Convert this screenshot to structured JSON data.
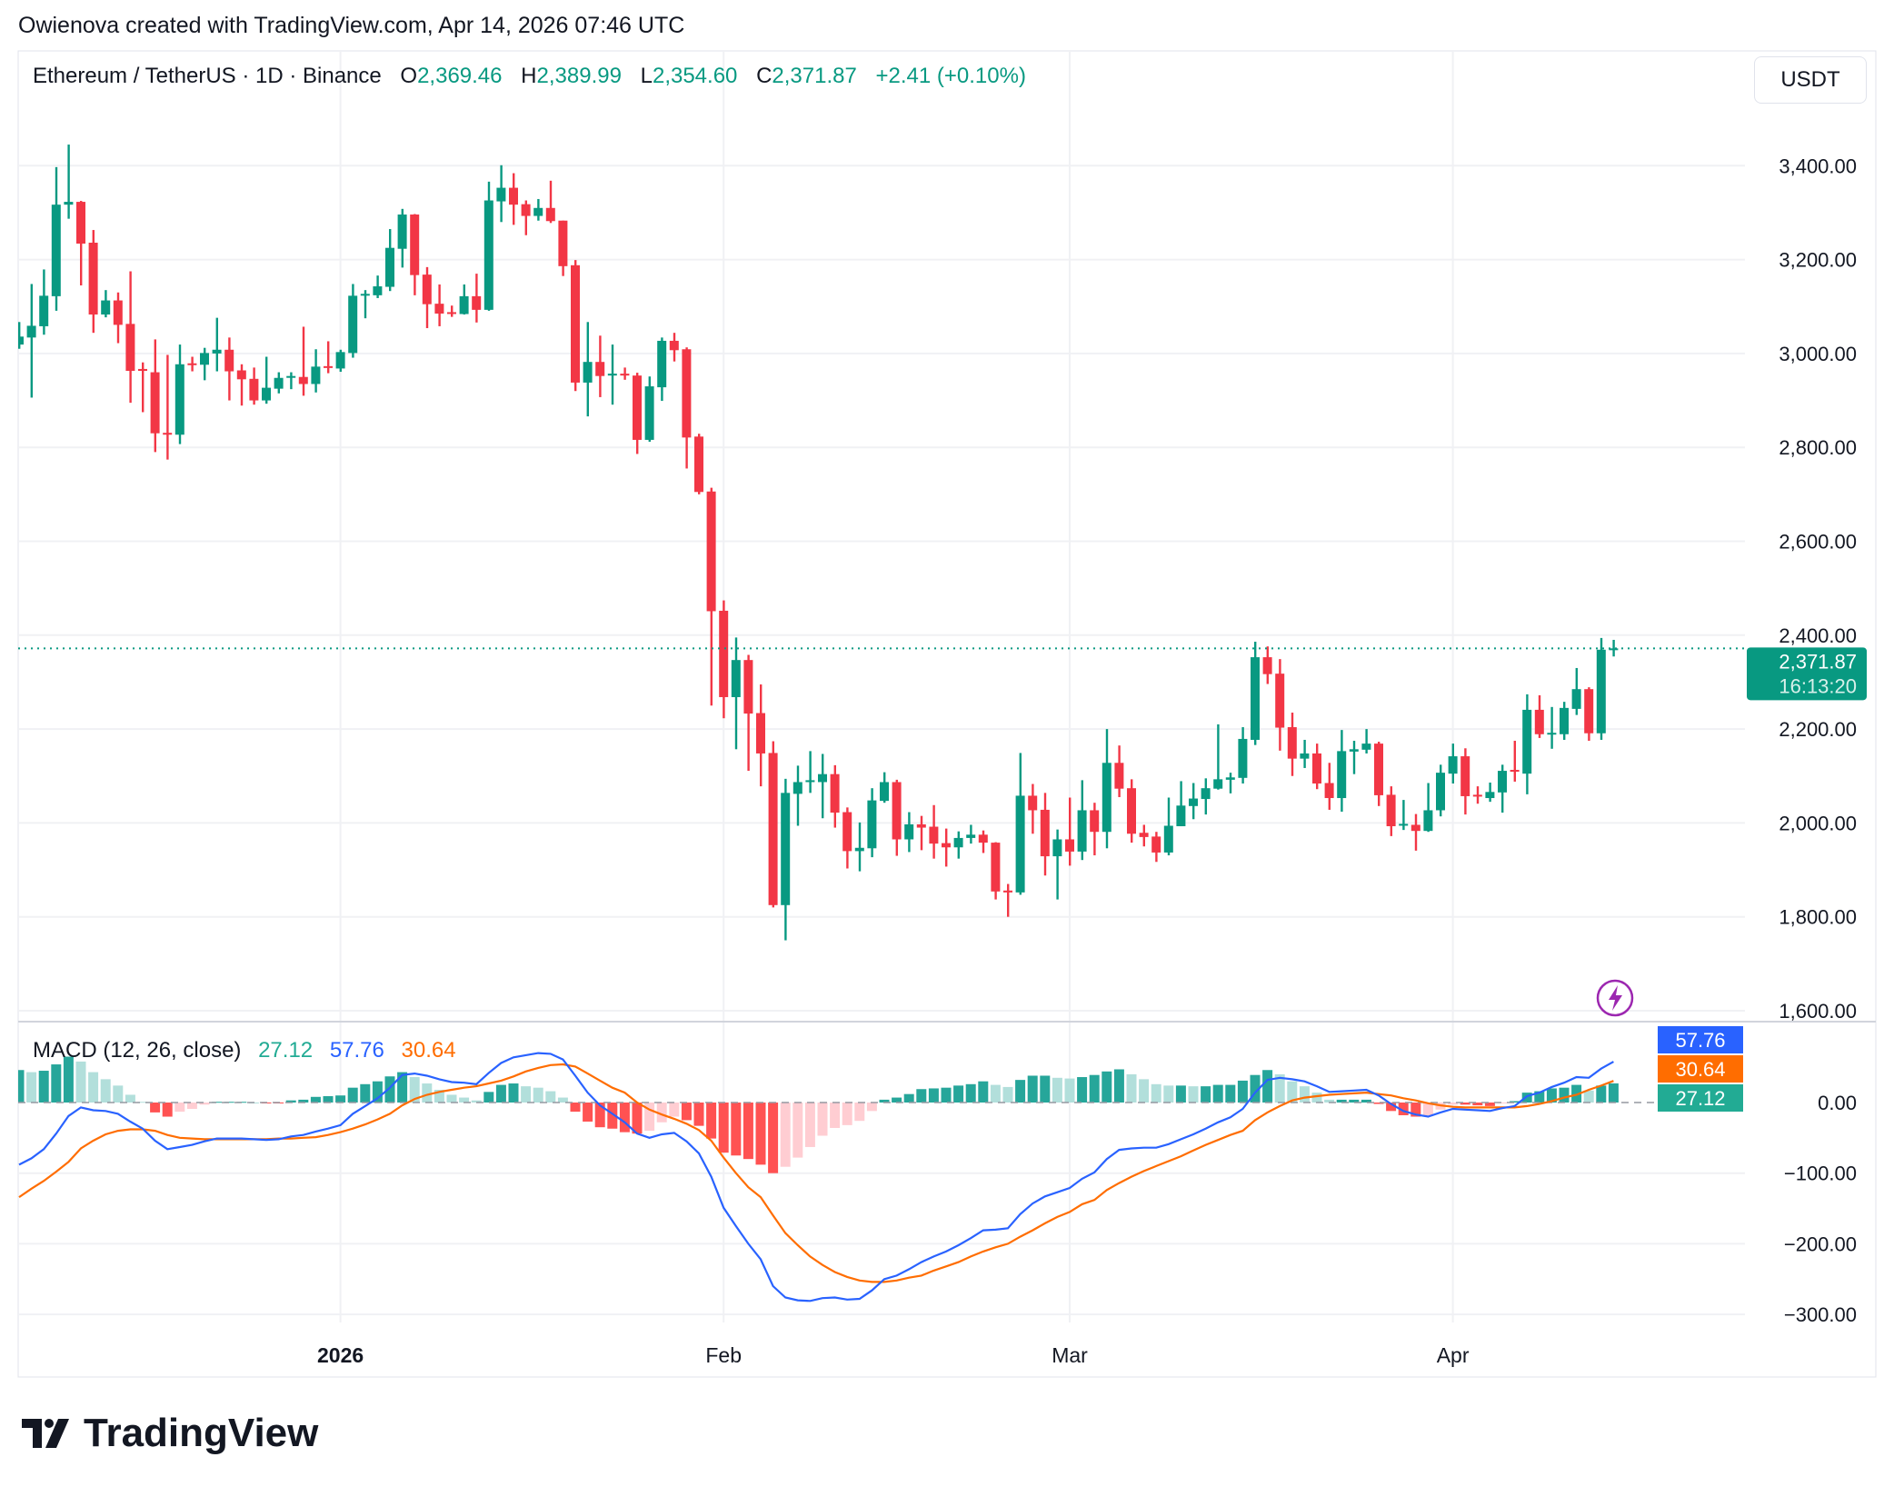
{
  "credit": "Owienova created with TradingView.com, Apr 14, 2026 07:46 UTC",
  "legend": {
    "symbol": "Ethereum / TetherUS · 1D · Binance",
    "o_label": "O",
    "open": "2,369.46",
    "h_label": "H",
    "high": "2,389.99",
    "l_label": "L",
    "low": "2,354.60",
    "c_label": "C",
    "close": "2,371.87",
    "change": "+2.41 (+0.10%)"
  },
  "currency_button": "USDT",
  "logo_text": "TradingView",
  "colors": {
    "up": "#089981",
    "down": "#f23645",
    "macd": "#2962ff",
    "signal": "#ff6d00",
    "hist_up_strong": "#26a69a",
    "hist_up_weak": "#b2dfdb",
    "hist_down_strong": "#ff5252",
    "hist_down_weak": "#ffcdd2",
    "alert": "#9c27b0"
  },
  "chart_data": {
    "type": "candlestick",
    "title": "Ethereum / TetherUS · 1D · Binance",
    "ylim": [
      1600,
      3450
    ],
    "grid": true,
    "y_ticks": [
      {
        "value": 3400,
        "label": "3,400.00"
      },
      {
        "value": 3200,
        "label": "3,200.00"
      },
      {
        "value": 3000,
        "label": "3,000.00"
      },
      {
        "value": 2800,
        "label": "2,800.00"
      },
      {
        "value": 2600,
        "label": "2,600.00"
      },
      {
        "value": 2400,
        "label": "2,400.00"
      },
      {
        "value": 2200,
        "label": "2,200.00"
      },
      {
        "value": 2000,
        "label": "2,000.00"
      },
      {
        "value": 1800,
        "label": "1,800.00"
      },
      {
        "value": 1600,
        "label": "1,600.00"
      }
    ],
    "x_ticks": [
      {
        "date": "2026-01-01",
        "label": "2026",
        "bold": true
      },
      {
        "date": "2026-02-01",
        "label": "Feb"
      },
      {
        "date": "2026-03-01",
        "label": "Mar"
      },
      {
        "date": "2026-04-01",
        "label": "Apr"
      }
    ],
    "current_price": {
      "value": 2371.87,
      "label": "2,371.87",
      "countdown": "16:13:20"
    },
    "candles_columns": [
      "date",
      "open",
      "high",
      "low",
      "close"
    ],
    "candles": [
      [
        "2025-12-06",
        3019,
        3067,
        3010,
        3036
      ],
      [
        "2025-12-07",
        3034,
        3148,
        2906,
        3059
      ],
      [
        "2025-12-08",
        3058,
        3179,
        3040,
        3123
      ],
      [
        "2025-12-09",
        3122,
        3397,
        3091,
        3317
      ],
      [
        "2025-12-10",
        3317,
        3445,
        3287,
        3323
      ],
      [
        "2025-12-11",
        3323,
        3325,
        3145,
        3234
      ],
      [
        "2025-12-12",
        3236,
        3263,
        3044,
        3083
      ],
      [
        "2025-12-13",
        3083,
        3135,
        3077,
        3113
      ],
      [
        "2025-12-14",
        3113,
        3130,
        3022,
        3061
      ],
      [
        "2025-12-15",
        3063,
        3175,
        2895,
        2963
      ],
      [
        "2025-12-16",
        2967,
        2981,
        2875,
        2963
      ],
      [
        "2025-12-17",
        2960,
        3030,
        2790,
        2830
      ],
      [
        "2025-12-18",
        2831,
        2997,
        2774,
        2827
      ],
      [
        "2025-12-19",
        2827,
        3019,
        2807,
        2977
      ],
      [
        "2025-12-20",
        2979,
        2993,
        2962,
        2977
      ],
      [
        "2025-12-21",
        2976,
        3012,
        2943,
        3001
      ],
      [
        "2025-12-22",
        3000,
        3076,
        2962,
        3008
      ],
      [
        "2025-12-23",
        3008,
        3034,
        2900,
        2962
      ],
      [
        "2025-12-24",
        2964,
        2977,
        2889,
        2945
      ],
      [
        "2025-12-25",
        2946,
        2970,
        2891,
        2900
      ],
      [
        "2025-12-26",
        2900,
        2993,
        2893,
        2927
      ],
      [
        "2025-12-27",
        2925,
        2960,
        2915,
        2948
      ],
      [
        "2025-12-28",
        2949,
        2960,
        2924,
        2952
      ],
      [
        "2025-12-29",
        2950,
        3057,
        2910,
        2935
      ],
      [
        "2025-12-30",
        2935,
        3009,
        2917,
        2972
      ],
      [
        "2025-12-31",
        2973,
        3026,
        2958,
        2970
      ],
      [
        "2026-01-01",
        2968,
        3008,
        2961,
        3003
      ],
      [
        "2026-01-02",
        3001,
        3148,
        2991,
        3123
      ],
      [
        "2026-01-03",
        3124,
        3135,
        3075,
        3127
      ],
      [
        "2026-01-04",
        3124,
        3166,
        3118,
        3143
      ],
      [
        "2026-01-05",
        3142,
        3265,
        3133,
        3225
      ],
      [
        "2026-01-06",
        3223,
        3308,
        3183,
        3296
      ],
      [
        "2026-01-07",
        3296,
        3297,
        3124,
        3167
      ],
      [
        "2026-01-08",
        3168,
        3184,
        3054,
        3105
      ],
      [
        "2026-01-09",
        3106,
        3147,
        3058,
        3085
      ],
      [
        "2026-01-10",
        3088,
        3102,
        3078,
        3085
      ],
      [
        "2026-01-11",
        3084,
        3147,
        3083,
        3122
      ],
      [
        "2026-01-12",
        3122,
        3170,
        3066,
        3093
      ],
      [
        "2026-01-13",
        3093,
        3366,
        3091,
        3326
      ],
      [
        "2026-01-14",
        3324,
        3401,
        3280,
        3353
      ],
      [
        "2026-01-15",
        3353,
        3384,
        3274,
        3317
      ],
      [
        "2026-01-16",
        3318,
        3326,
        3252,
        3293
      ],
      [
        "2026-01-17",
        3293,
        3329,
        3283,
        3310
      ],
      [
        "2026-01-18",
        3310,
        3368,
        3278,
        3282
      ],
      [
        "2026-01-19",
        3283,
        3283,
        3165,
        3186
      ],
      [
        "2026-01-20",
        3188,
        3199,
        2920,
        2938
      ],
      [
        "2026-01-21",
        2938,
        3067,
        2866,
        2982
      ],
      [
        "2026-01-22",
        2982,
        3038,
        2907,
        2952
      ],
      [
        "2026-01-23",
        2953,
        3019,
        2891,
        2957
      ],
      [
        "2026-01-24",
        2957,
        2970,
        2944,
        2953
      ],
      [
        "2026-01-25",
        2953,
        2959,
        2786,
        2816
      ],
      [
        "2026-01-26",
        2816,
        2951,
        2812,
        2930
      ],
      [
        "2026-01-27",
        2928,
        3034,
        2899,
        3027
      ],
      [
        "2026-01-28",
        3027,
        3044,
        2983,
        3007
      ],
      [
        "2026-01-29",
        3009,
        3013,
        2755,
        2821
      ],
      [
        "2026-01-30",
        2823,
        2829,
        2700,
        2705
      ],
      [
        "2026-01-31",
        2706,
        2714,
        2250,
        2451
      ],
      [
        "2026-02-01",
        2452,
        2474,
        2223,
        2268
      ],
      [
        "2026-02-02",
        2268,
        2395,
        2157,
        2347
      ],
      [
        "2026-02-03",
        2347,
        2358,
        2111,
        2233
      ],
      [
        "2026-02-04",
        2234,
        2295,
        2078,
        2148
      ],
      [
        "2026-02-05",
        2149,
        2174,
        1820,
        1825
      ],
      [
        "2026-02-06",
        1825,
        2094,
        1750,
        2064
      ],
      [
        "2026-02-07",
        2062,
        2122,
        1994,
        2087
      ],
      [
        "2026-02-08",
        2087,
        2153,
        2064,
        2091
      ],
      [
        "2026-02-09",
        2087,
        2147,
        2010,
        2104
      ],
      [
        "2026-02-10",
        2104,
        2123,
        1990,
        2022
      ],
      [
        "2026-02-11",
        2023,
        2033,
        1903,
        1940
      ],
      [
        "2026-02-12",
        1940,
        2001,
        1897,
        1947
      ],
      [
        "2026-02-13",
        1946,
        2074,
        1927,
        2048
      ],
      [
        "2026-02-14",
        2047,
        2108,
        2043,
        2087
      ],
      [
        "2026-02-15",
        2087,
        2092,
        1930,
        1965
      ],
      [
        "2026-02-16",
        1965,
        2023,
        1938,
        1997
      ],
      [
        "2026-02-17",
        1997,
        2015,
        1942,
        1990
      ],
      [
        "2026-02-18",
        1992,
        2038,
        1924,
        1956
      ],
      [
        "2026-02-19",
        1957,
        1988,
        1907,
        1948
      ],
      [
        "2026-02-20",
        1948,
        1982,
        1924,
        1968
      ],
      [
        "2026-02-21",
        1968,
        1996,
        1956,
        1975
      ],
      [
        "2026-02-22",
        1975,
        1984,
        1936,
        1958
      ],
      [
        "2026-02-23",
        1958,
        1959,
        1837,
        1854
      ],
      [
        "2026-02-24",
        1856,
        1870,
        1800,
        1852
      ],
      [
        "2026-02-25",
        1852,
        2149,
        1847,
        2058
      ],
      [
        "2026-02-26",
        2058,
        2083,
        1977,
        2027
      ],
      [
        "2026-02-27",
        2028,
        2064,
        1888,
        1929
      ],
      [
        "2026-02-28",
        1929,
        1986,
        1837,
        1965
      ],
      [
        "2026-03-01",
        1965,
        2054,
        1909,
        1939
      ],
      [
        "2026-03-02",
        1939,
        2091,
        1921,
        2027
      ],
      [
        "2026-03-03",
        2027,
        2043,
        1931,
        1981
      ],
      [
        "2026-03-04",
        1981,
        2200,
        1946,
        2128
      ],
      [
        "2026-03-05",
        2128,
        2165,
        2055,
        2073
      ],
      [
        "2026-03-06",
        2074,
        2093,
        1958,
        1977
      ],
      [
        "2026-03-07",
        1979,
        1996,
        1950,
        1970
      ],
      [
        "2026-03-08",
        1971,
        1981,
        1917,
        1937
      ],
      [
        "2026-03-09",
        1937,
        2054,
        1931,
        1994
      ],
      [
        "2026-03-10",
        1993,
        2089,
        1993,
        2037
      ],
      [
        "2026-03-11",
        2036,
        2085,
        2008,
        2052
      ],
      [
        "2026-03-12",
        2051,
        2095,
        2018,
        2074
      ],
      [
        "2026-03-13",
        2073,
        2210,
        2071,
        2093
      ],
      [
        "2026-03-14",
        2092,
        2107,
        2063,
        2097
      ],
      [
        "2026-03-15",
        2096,
        2204,
        2084,
        2179
      ],
      [
        "2026-03-16",
        2177,
        2386,
        2166,
        2353
      ],
      [
        "2026-03-17",
        2353,
        2376,
        2296,
        2317
      ],
      [
        "2026-03-18",
        2318,
        2349,
        2154,
        2203
      ],
      [
        "2026-03-19",
        2204,
        2235,
        2100,
        2137
      ],
      [
        "2026-03-20",
        2137,
        2177,
        2117,
        2148
      ],
      [
        "2026-03-21",
        2148,
        2169,
        2072,
        2084
      ],
      [
        "2026-03-22",
        2085,
        2128,
        2028,
        2053
      ],
      [
        "2026-03-23",
        2053,
        2198,
        2024,
        2153
      ],
      [
        "2026-03-24",
        2152,
        2175,
        2104,
        2157
      ],
      [
        "2026-03-25",
        2156,
        2200,
        2148,
        2169
      ],
      [
        "2026-03-26",
        2169,
        2173,
        2036,
        2059
      ],
      [
        "2026-03-27",
        2060,
        2078,
        1972,
        1993
      ],
      [
        "2026-03-28",
        1995,
        2049,
        1985,
        1998
      ],
      [
        "2026-03-29",
        1996,
        2019,
        1941,
        1983
      ],
      [
        "2026-03-30",
        1983,
        2085,
        1981,
        2027
      ],
      [
        "2026-03-31",
        2027,
        2124,
        2014,
        2107
      ],
      [
        "2026-04-01",
        2105,
        2169,
        2084,
        2142
      ],
      [
        "2026-04-02",
        2142,
        2159,
        2018,
        2057
      ],
      [
        "2026-04-03",
        2060,
        2078,
        2041,
        2057
      ],
      [
        "2026-04-04",
        2053,
        2086,
        2045,
        2066
      ],
      [
        "2026-04-05",
        2065,
        2124,
        2022,
        2111
      ],
      [
        "2026-04-06",
        2113,
        2175,
        2088,
        2110
      ],
      [
        "2026-04-07",
        2105,
        2274,
        2061,
        2241
      ],
      [
        "2026-04-08",
        2241,
        2272,
        2181,
        2189
      ],
      [
        "2026-04-09",
        2189,
        2247,
        2158,
        2192
      ],
      [
        "2026-04-10",
        2189,
        2258,
        2177,
        2245
      ],
      [
        "2026-04-11",
        2243,
        2330,
        2230,
        2285
      ],
      [
        "2026-04-12",
        2285,
        2289,
        2175,
        2191
      ],
      [
        "2026-04-13",
        2191,
        2394,
        2177,
        2369
      ],
      [
        "2026-04-14",
        2369.46,
        2389.99,
        2354.6,
        2371.87
      ]
    ],
    "indicator": {
      "name": "MACD (12, 26, close)",
      "histogram_label": "27.12",
      "macd_label": "57.76",
      "signal_label": "30.64",
      "ylim": [
        -300,
        75
      ],
      "y_ticks": [
        {
          "value": 0,
          "label": "0.00"
        },
        {
          "value": -100,
          "label": "−100.00"
        },
        {
          "value": -200,
          "label": "−200.00"
        },
        {
          "value": -300,
          "label": "−300.00"
        }
      ],
      "macd": [
        -88,
        -79,
        -66,
        -44,
        -19,
        -7,
        -11,
        -12,
        -16,
        -27,
        -37,
        -54,
        -66,
        -63,
        -60,
        -55,
        -51,
        -51,
        -51,
        -52,
        -53,
        -52,
        -48,
        -46,
        -41,
        -37,
        -32,
        -16,
        -5,
        6,
        21,
        39,
        41,
        38,
        33,
        29,
        28,
        26,
        42,
        56,
        64,
        67,
        70,
        69,
        61,
        38,
        14,
        -4,
        -16,
        -28,
        -44,
        -50,
        -45,
        -43,
        -55,
        -72,
        -105,
        -149,
        -175,
        -200,
        -222,
        -260,
        -276,
        -280,
        -281,
        -277,
        -276,
        -279,
        -278,
        -266,
        -250,
        -245,
        -236,
        -226,
        -218,
        -211,
        -202,
        -192,
        -181,
        -180,
        -178,
        -158,
        -143,
        -133,
        -127,
        -121,
        -108,
        -99,
        -80,
        -67,
        -65,
        -64,
        -64,
        -59,
        -52,
        -45,
        -37,
        -28,
        -21,
        -9,
        14,
        32,
        35,
        33,
        30,
        23,
        15,
        16,
        17,
        18,
        10,
        -2,
        -12,
        -17,
        -20,
        -14,
        -9,
        -10,
        -11,
        -12,
        -8,
        -5,
        9,
        14,
        22,
        28,
        36,
        35,
        48,
        57.76
      ],
      "signal": [
        -134,
        -122,
        -111,
        -98,
        -84,
        -65,
        -54,
        -45,
        -40,
        -38,
        -38,
        -40,
        -46,
        -50,
        -51,
        -52,
        -52,
        -52,
        -52,
        -52,
        -52,
        -51,
        -51,
        -50,
        -49,
        -46,
        -42,
        -37,
        -31,
        -24,
        -16,
        -4,
        5,
        11,
        15,
        18,
        21,
        23,
        27,
        31,
        37,
        44,
        49,
        53,
        54,
        51,
        41,
        31,
        21,
        14,
        0,
        -10,
        -17,
        -23,
        -30,
        -39,
        -54,
        -78,
        -100,
        -120,
        -134,
        -160,
        -185,
        -202,
        -218,
        -230,
        -240,
        -247,
        -252,
        -254,
        -254,
        -252,
        -248,
        -245,
        -238,
        -232,
        -226,
        -218,
        -211,
        -205,
        -200,
        -190,
        -181,
        -171,
        -162,
        -155,
        -144,
        -138,
        -124,
        -114,
        -105,
        -97,
        -90,
        -83,
        -76,
        -68,
        -60,
        -53,
        -46,
        -40,
        -25,
        -14,
        -5,
        3,
        7,
        9,
        11,
        12,
        13,
        14,
        12,
        10,
        6,
        3,
        -1,
        -4,
        -6,
        -7,
        -7,
        -7,
        -7,
        -7,
        -5,
        -2,
        2,
        7,
        11,
        18,
        24,
        30.64
      ]
    }
  }
}
